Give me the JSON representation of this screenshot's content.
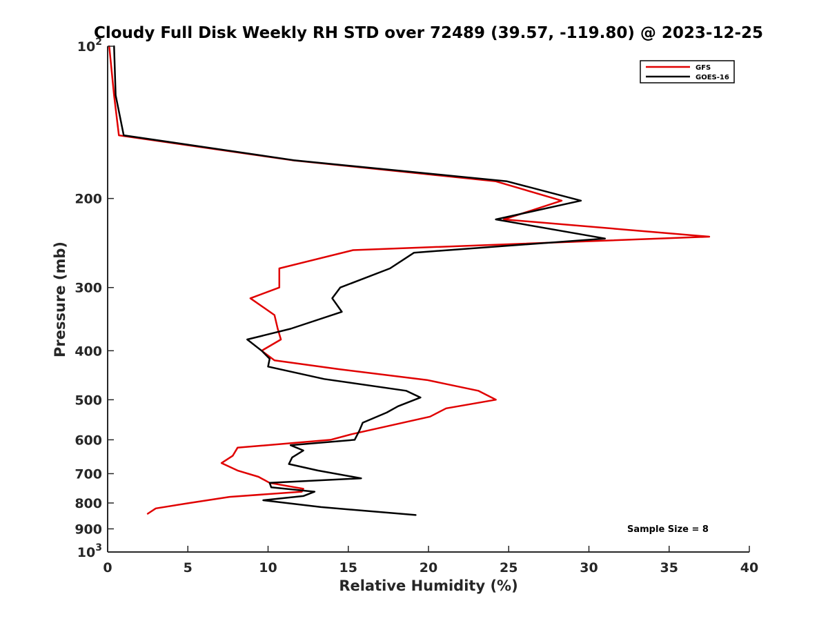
{
  "chart_data": {
    "type": "line",
    "title": "Cloudy Full Disk Weekly RH STD over 72489 (39.57, -119.80) @ 2023-12-25",
    "xlabel": "Relative Humidity (%)",
    "ylabel": "Pressure (mb)",
    "xlim": [
      0,
      40
    ],
    "ylim": [
      100,
      1000
    ],
    "y_scale": "log",
    "y_reversed": true,
    "grid": false,
    "legend_position": "top-right",
    "annotation": "Sample Size = 8",
    "x_ticks": [
      {
        "value": 0,
        "label": "0"
      },
      {
        "value": 5,
        "label": "5"
      },
      {
        "value": 10,
        "label": "10"
      },
      {
        "value": 15,
        "label": "15"
      },
      {
        "value": 20,
        "label": "20"
      },
      {
        "value": 25,
        "label": "25"
      },
      {
        "value": 30,
        "label": "30"
      },
      {
        "value": 35,
        "label": "35"
      },
      {
        "value": 40,
        "label": "40"
      }
    ],
    "y_ticks": [
      {
        "value": 100,
        "base": "10",
        "exp": "2"
      },
      {
        "value": 200,
        "label": "200"
      },
      {
        "value": 300,
        "label": "300"
      },
      {
        "value": 400,
        "label": "400"
      },
      {
        "value": 500,
        "label": "500"
      },
      {
        "value": 600,
        "label": "600"
      },
      {
        "value": 700,
        "label": "700"
      },
      {
        "value": 800,
        "label": "800"
      },
      {
        "value": 900,
        "label": "900"
      },
      {
        "value": 1000,
        "base": "10",
        "exp": "3"
      }
    ],
    "series": [
      {
        "name": "GFS",
        "color": "#e00000",
        "points": [
          [
            0.1,
            100
          ],
          [
            0.4,
            125
          ],
          [
            0.7,
            150
          ],
          [
            11.5,
            168
          ],
          [
            24.2,
            185
          ],
          [
            28.3,
            202
          ],
          [
            24.7,
            220
          ],
          [
            37.5,
            238
          ],
          [
            15.3,
            253
          ],
          [
            10.7,
            275
          ],
          [
            10.7,
            300
          ],
          [
            8.9,
            315
          ],
          [
            10.4,
            340
          ],
          [
            10.6,
            362
          ],
          [
            10.8,
            380
          ],
          [
            9.6,
            400
          ],
          [
            10.4,
            418
          ],
          [
            14.4,
            435
          ],
          [
            19.9,
            457
          ],
          [
            23.1,
            480
          ],
          [
            24.2,
            500
          ],
          [
            21.1,
            520
          ],
          [
            20.1,
            540
          ],
          [
            15.2,
            585
          ],
          [
            13.9,
            600
          ],
          [
            8.1,
            622
          ],
          [
            7.8,
            645
          ],
          [
            7.1,
            667
          ],
          [
            8.1,
            690
          ],
          [
            9.4,
            710
          ],
          [
            10.1,
            730
          ],
          [
            12.2,
            750
          ],
          [
            12.1,
            760
          ],
          [
            7.6,
            778
          ],
          [
            5.1,
            800
          ],
          [
            3,
            820
          ],
          [
            2.5,
            840
          ]
        ]
      },
      {
        "name": "GOES-16",
        "color": "#000000",
        "points": [
          [
            0.4,
            100
          ],
          [
            0.5,
            125
          ],
          [
            1,
            150
          ],
          [
            11.6,
            168
          ],
          [
            24.9,
            185
          ],
          [
            29.5,
            202
          ],
          [
            24.2,
            220
          ],
          [
            31,
            240
          ],
          [
            19.1,
            256
          ],
          [
            17.6,
            275
          ],
          [
            14.5,
            300
          ],
          [
            14,
            315
          ],
          [
            14.6,
            335
          ],
          [
            11.4,
            362
          ],
          [
            8.7,
            380
          ],
          [
            9.6,
            400
          ],
          [
            10.1,
            415
          ],
          [
            10,
            430
          ],
          [
            13.5,
            455
          ],
          [
            18.6,
            480
          ],
          [
            19.5,
            495
          ],
          [
            18.1,
            515
          ],
          [
            17.4,
            530
          ],
          [
            15.9,
            555
          ],
          [
            15.7,
            575
          ],
          [
            15.4,
            600
          ],
          [
            11.4,
            615
          ],
          [
            12.2,
            630
          ],
          [
            11.5,
            650
          ],
          [
            11.3,
            670
          ],
          [
            13.1,
            690
          ],
          [
            15.8,
            715
          ],
          [
            10.1,
            730
          ],
          [
            10.2,
            745
          ],
          [
            12.9,
            760
          ],
          [
            12.2,
            775
          ],
          [
            9.7,
            790
          ],
          [
            13.3,
            815
          ],
          [
            19.2,
            845
          ]
        ]
      }
    ]
  }
}
